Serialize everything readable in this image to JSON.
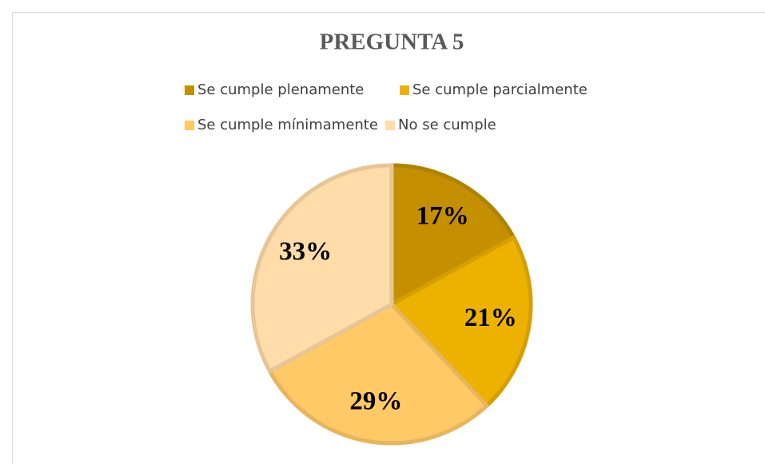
{
  "chart_data": {
    "type": "pie",
    "title": "PREGUNTA 5",
    "categories": [
      "Se cumple plenamente",
      "Se cumple parcialmente",
      "Se cumple mínimamente",
      "No se cumple"
    ],
    "values": [
      17,
      21,
      29,
      33
    ],
    "value_labels": [
      "17%",
      "21%",
      "29%",
      "33%"
    ],
    "colors": [
      "#C49000",
      "#EDB100",
      "#FFC966",
      "#FFDCA8"
    ],
    "legend": "top"
  }
}
